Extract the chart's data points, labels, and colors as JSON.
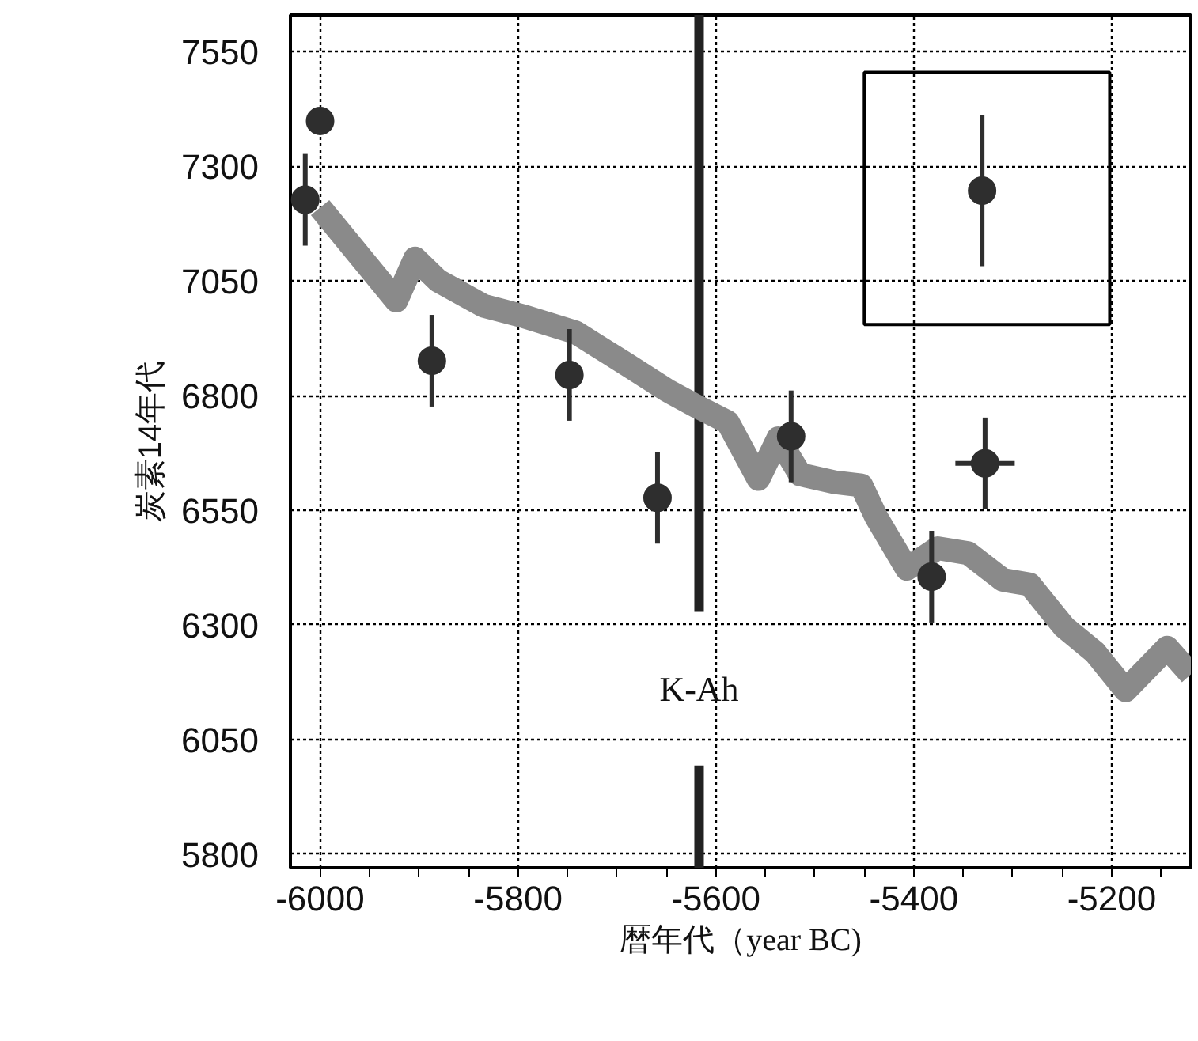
{
  "chart_data": {
    "type": "scatter",
    "xlabel": "暦年代（year BC)",
    "ylabel": "炭素14年代",
    "xlim": [
      -6030,
      -5120
    ],
    "ylim": [
      5770,
      7630
    ],
    "xticks": [
      -6000,
      {
        "value": -5950,
        "label": null
      },
      {
        "value": -5900,
        "label": null
      },
      {
        "value": -5850,
        "label": null
      },
      -5800,
      {
        "value": -5750,
        "label": null
      },
      {
        "value": -5700,
        "label": null
      },
      {
        "value": -5650,
        "label": null
      },
      -5600,
      {
        "value": -5550,
        "label": null
      },
      {
        "value": -5500,
        "label": null
      },
      {
        "value": -5450,
        "label": null
      },
      -5400,
      {
        "value": -5350,
        "label": null
      },
      {
        "value": -5300,
        "label": null
      },
      {
        "value": -5250,
        "label": null
      },
      -5200,
      {
        "value": -5150,
        "label": null
      }
    ],
    "yticks": [
      5800,
      6050,
      6300,
      6550,
      6800,
      7050,
      7300,
      7550
    ],
    "grid": true,
    "marker": "circle",
    "series": [
      {
        "type": "line",
        "marker": "none",
        "color": "#8a8a8a",
        "x": [
          -6000,
          -5923,
          -5904,
          -5881,
          -5835,
          -5793,
          -5742,
          -5691,
          -5649,
          -5619,
          -5588,
          -5557,
          -5537,
          -5515,
          -5480,
          -5453,
          -5438,
          -5407,
          -5376,
          -5345,
          -5310,
          -5283,
          -5248,
          -5217,
          -5186,
          -5144,
          -5120
        ],
        "values": [
          7210,
          7007,
          7099,
          7051,
          6996,
          6972,
          6938,
          6869,
          6811,
          6776,
          6742,
          6618,
          6707,
          6628,
          6611,
          6604,
          6535,
          6422,
          6467,
          6456,
          6398,
          6388,
          6295,
          6240,
          6157,
          6250,
          6192
        ]
      },
      {
        "color": "#2e2e2e",
        "x": [
          -6015,
          -6000,
          -5887,
          -5748,
          -5659,
          -5524,
          -5382,
          -5328,
          -5331
        ],
        "values": [
          7227,
          7399,
          6876,
          6845,
          6577,
          6711,
          6405,
          6652,
          7247
        ],
        "errors": [
          100,
          null,
          100,
          100,
          100,
          100,
          100,
          100,
          165
        ],
        "xerrors": [
          null,
          null,
          null,
          null,
          null,
          null,
          null,
          30,
          null
        ]
      }
    ],
    "ref_lines": [
      {
        "axis": "x",
        "value": -5617,
        "label": "K-Ah",
        "color": "#222222"
      }
    ]
  }
}
